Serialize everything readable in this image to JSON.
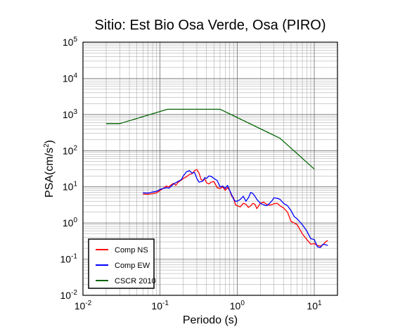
{
  "chart_data": {
    "type": "line",
    "title": "Sitio: Est Bio Osa Verde, Osa (PIRO)",
    "xlabel": "Periodo (s)",
    "ylabel_base": "PSA(cm/s",
    "ylabel_sup": "2",
    "ylabel_end": ")",
    "x_scale": "log",
    "y_scale": "log",
    "xlim": [
      0.01,
      20
    ],
    "ylim": [
      0.01,
      100000
    ],
    "grid": true,
    "legend_position": "bottom-left",
    "x_ticks": [
      {
        "value": 0.01,
        "base": "10",
        "exp": "-2"
      },
      {
        "value": 0.1,
        "base": "10",
        "exp": "-1"
      },
      {
        "value": 1,
        "base": "10",
        "exp": "0"
      },
      {
        "value": 10,
        "base": "10",
        "exp": "1"
      }
    ],
    "y_ticks": [
      {
        "value": 0.01,
        "base": "10",
        "exp": "-2"
      },
      {
        "value": 0.1,
        "base": "10",
        "exp": "-1"
      },
      {
        "value": 1,
        "base": "10",
        "exp": "0"
      },
      {
        "value": 10,
        "base": "10",
        "exp": "1"
      },
      {
        "value": 100,
        "base": "10",
        "exp": "2"
      },
      {
        "value": 1000,
        "base": "10",
        "exp": "3"
      },
      {
        "value": 10000,
        "base": "10",
        "exp": "4"
      },
      {
        "value": 100000,
        "base": "10",
        "exp": "5"
      }
    ],
    "series": [
      {
        "name": "Comp NS",
        "color": "#ff0000",
        "points": [
          [
            0.06,
            6.3
          ],
          [
            0.07,
            6.2
          ],
          [
            0.08,
            6.5
          ],
          [
            0.09,
            6.8
          ],
          [
            0.1,
            8.0
          ],
          [
            0.11,
            9.0
          ],
          [
            0.12,
            10.5
          ],
          [
            0.13,
            10.0
          ],
          [
            0.14,
            11.5
          ],
          [
            0.15,
            12.5
          ],
          [
            0.16,
            11.0
          ],
          [
            0.17,
            13.0
          ],
          [
            0.18,
            14.5
          ],
          [
            0.19,
            15.5
          ],
          [
            0.2,
            17.0
          ],
          [
            0.22,
            19.0
          ],
          [
            0.24,
            22.0
          ],
          [
            0.26,
            23.0
          ],
          [
            0.28,
            28.0
          ],
          [
            0.3,
            30.0
          ],
          [
            0.32,
            24.0
          ],
          [
            0.34,
            16.0
          ],
          [
            0.36,
            15.0
          ],
          [
            0.38,
            16.5
          ],
          [
            0.4,
            13.0
          ],
          [
            0.43,
            12.0
          ],
          [
            0.46,
            13.5
          ],
          [
            0.5,
            14.0
          ],
          [
            0.55,
            9.5
          ],
          [
            0.6,
            9.0
          ],
          [
            0.65,
            10.0
          ],
          [
            0.7,
            8.0
          ],
          [
            0.75,
            9.5
          ],
          [
            0.8,
            8.0
          ],
          [
            0.85,
            5.5
          ],
          [
            0.9,
            5.0
          ],
          [
            0.95,
            3.2
          ],
          [
            1.0,
            3.0
          ],
          [
            1.1,
            2.8
          ],
          [
            1.2,
            3.5
          ],
          [
            1.3,
            3.3
          ],
          [
            1.4,
            2.7
          ],
          [
            1.5,
            3.0
          ],
          [
            1.6,
            3.5
          ],
          [
            1.7,
            3.3
          ],
          [
            1.8,
            2.5
          ],
          [
            2.0,
            3.5
          ],
          [
            2.2,
            3.8
          ],
          [
            2.4,
            3.3
          ],
          [
            2.6,
            3.1
          ],
          [
            2.8,
            3.2
          ],
          [
            3.0,
            3.4
          ],
          [
            3.3,
            3.5
          ],
          [
            3.6,
            3.0
          ],
          [
            4.0,
            2.6
          ],
          [
            4.5,
            2.0
          ],
          [
            5.0,
            1.1
          ],
          [
            5.5,
            1.0
          ],
          [
            6.0,
            0.9
          ],
          [
            7.0,
            0.5
          ],
          [
            8.0,
            0.35
          ],
          [
            9.0,
            0.26
          ],
          [
            10.0,
            0.27
          ],
          [
            11.0,
            0.24
          ],
          [
            12.0,
            0.23
          ],
          [
            13.0,
            0.25
          ],
          [
            14.0,
            0.3
          ],
          [
            15.0,
            0.33
          ]
        ]
      },
      {
        "name": "Comp EW",
        "color": "#0000ff",
        "points": [
          [
            0.06,
            6.8
          ],
          [
            0.07,
            6.7
          ],
          [
            0.08,
            7.2
          ],
          [
            0.09,
            7.5
          ],
          [
            0.1,
            8.5
          ],
          [
            0.11,
            9.0
          ],
          [
            0.12,
            9.5
          ],
          [
            0.13,
            9.2
          ],
          [
            0.14,
            10.5
          ],
          [
            0.15,
            12.0
          ],
          [
            0.16,
            13.0
          ],
          [
            0.17,
            14.0
          ],
          [
            0.18,
            15.0
          ],
          [
            0.19,
            16.0
          ],
          [
            0.2,
            20.0
          ],
          [
            0.22,
            26.0
          ],
          [
            0.24,
            28.0
          ],
          [
            0.26,
            24.0
          ],
          [
            0.28,
            25.0
          ],
          [
            0.3,
            17.0
          ],
          [
            0.32,
            13.5
          ],
          [
            0.34,
            14.0
          ],
          [
            0.36,
            14.5
          ],
          [
            0.38,
            18.0
          ],
          [
            0.4,
            17.0
          ],
          [
            0.43,
            20.0
          ],
          [
            0.46,
            19.5
          ],
          [
            0.5,
            17.0
          ],
          [
            0.55,
            15.0
          ],
          [
            0.6,
            10.0
          ],
          [
            0.65,
            10.5
          ],
          [
            0.7,
            9.0
          ],
          [
            0.75,
            11.0
          ],
          [
            0.8,
            8.0
          ],
          [
            0.85,
            6.0
          ],
          [
            0.9,
            4.5
          ],
          [
            0.95,
            4.0
          ],
          [
            1.0,
            4.0
          ],
          [
            1.1,
            4.5
          ],
          [
            1.2,
            5.5
          ],
          [
            1.3,
            4.0
          ],
          [
            1.4,
            5.0
          ],
          [
            1.5,
            7.0
          ],
          [
            1.6,
            6.5
          ],
          [
            1.7,
            5.5
          ],
          [
            1.8,
            4.5
          ],
          [
            2.0,
            3.5
          ],
          [
            2.2,
            3.2
          ],
          [
            2.4,
            3.0
          ],
          [
            2.6,
            3.4
          ],
          [
            2.8,
            4.0
          ],
          [
            3.0,
            5.0
          ],
          [
            3.3,
            4.8
          ],
          [
            3.6,
            4.5
          ],
          [
            4.0,
            3.5
          ],
          [
            4.5,
            3.0
          ],
          [
            5.0,
            2.2
          ],
          [
            5.5,
            1.5
          ],
          [
            6.0,
            1.3
          ],
          [
            7.0,
            0.9
          ],
          [
            8.0,
            0.6
          ],
          [
            9.0,
            0.37
          ],
          [
            10.0,
            0.35
          ],
          [
            11.0,
            0.22
          ],
          [
            12.0,
            0.21
          ],
          [
            13.0,
            0.26
          ],
          [
            14.0,
            0.25
          ],
          [
            15.0,
            0.24
          ]
        ]
      },
      {
        "name": "CSCR 2010",
        "color": "#006400",
        "points": [
          [
            0.02,
            560
          ],
          [
            0.03,
            560
          ],
          [
            0.125,
            1400
          ],
          [
            0.6,
            1400
          ],
          [
            3.6,
            220
          ],
          [
            10.0,
            31
          ]
        ]
      }
    ]
  }
}
